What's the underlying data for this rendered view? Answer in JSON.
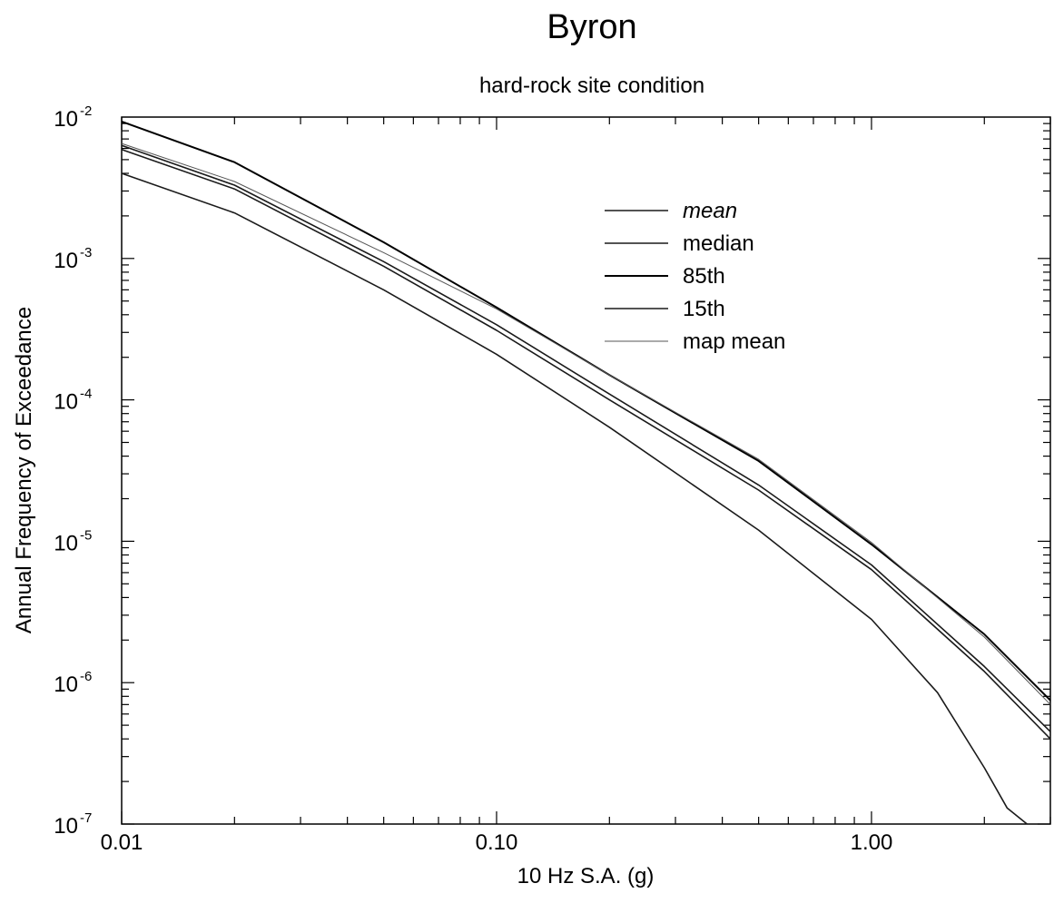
{
  "chart_data": {
    "type": "line",
    "title": "Byron",
    "subtitle": "hard-rock site condition",
    "xlabel": "10 Hz S.A. (g)",
    "ylabel": "Annual Frequency of Exceedance",
    "x_scale": "log",
    "y_scale": "log",
    "xlim": [
      0.01,
      3.0
    ],
    "ylim": [
      1e-07,
      0.01
    ],
    "x_ticks": [
      {
        "value": 0.01,
        "label": "0.01"
      },
      {
        "value": 0.1,
        "label": "0.10"
      },
      {
        "value": 1.0,
        "label": "1.00"
      }
    ],
    "y_ticks": [
      {
        "value": 0.01,
        "base": "10",
        "exp": "-2"
      },
      {
        "value": 0.001,
        "base": "10",
        "exp": "-3"
      },
      {
        "value": 0.0001,
        "base": "10",
        "exp": "-4"
      },
      {
        "value": 1e-05,
        "base": "10",
        "exp": "-5"
      },
      {
        "value": 1e-06,
        "base": "10",
        "exp": "-6"
      },
      {
        "value": 1e-07,
        "base": "10",
        "exp": "-7"
      }
    ],
    "grid": false,
    "legend_position": "upper-right",
    "series": [
      {
        "name": "mean",
        "color": "#1a1a1a",
        "line_width": 1.6,
        "x": [
          0.01,
          0.02,
          0.05,
          0.1,
          0.2,
          0.5,
          1.0,
          2.0,
          3.0
        ],
        "y": [
          0.0063,
          0.0033,
          0.00095,
          0.00034,
          0.00011,
          2.5e-05,
          6.8e-06,
          1.3e-06,
          4.5e-07
        ]
      },
      {
        "name": "median",
        "color": "#1a1a1a",
        "line_width": 1.6,
        "x": [
          0.01,
          0.02,
          0.05,
          0.1,
          0.2,
          0.5,
          1.0,
          2.0,
          3.0
        ],
        "y": [
          0.0059,
          0.0031,
          0.00088,
          0.00031,
          0.0001,
          2.3e-05,
          6.3e-06,
          1.2e-06,
          4e-07
        ]
      },
      {
        "name": "85th",
        "color": "#000000",
        "line_width": 2.0,
        "x": [
          0.01,
          0.02,
          0.05,
          0.1,
          0.2,
          0.5,
          1.0,
          2.0,
          3.0
        ],
        "y": [
          0.0093,
          0.0048,
          0.0013,
          0.00045,
          0.00015,
          3.7e-05,
          9.5e-06,
          2.2e-06,
          7.5e-07
        ]
      },
      {
        "name": "15th",
        "color": "#1a1a1a",
        "line_width": 1.6,
        "x": [
          0.01,
          0.02,
          0.05,
          0.1,
          0.2,
          0.5,
          1.0,
          1.5,
          2.0,
          2.3,
          2.6
        ],
        "y": [
          0.004,
          0.0021,
          0.0006,
          0.00021,
          6.4e-05,
          1.2e-05,
          2.8e-06,
          8.5e-07,
          2.5e-07,
          1.3e-07,
          1e-07
        ]
      },
      {
        "name": "map mean",
        "color": "#555555",
        "line_width": 1.0,
        "x": [
          0.01,
          0.02,
          0.05,
          0.1,
          0.2,
          0.5,
          1.0,
          2.0,
          3.0
        ],
        "y": [
          0.0065,
          0.0035,
          0.0011,
          0.00044,
          0.00015,
          3.8e-05,
          9.8e-06,
          2.1e-06,
          7e-07
        ]
      }
    ]
  }
}
